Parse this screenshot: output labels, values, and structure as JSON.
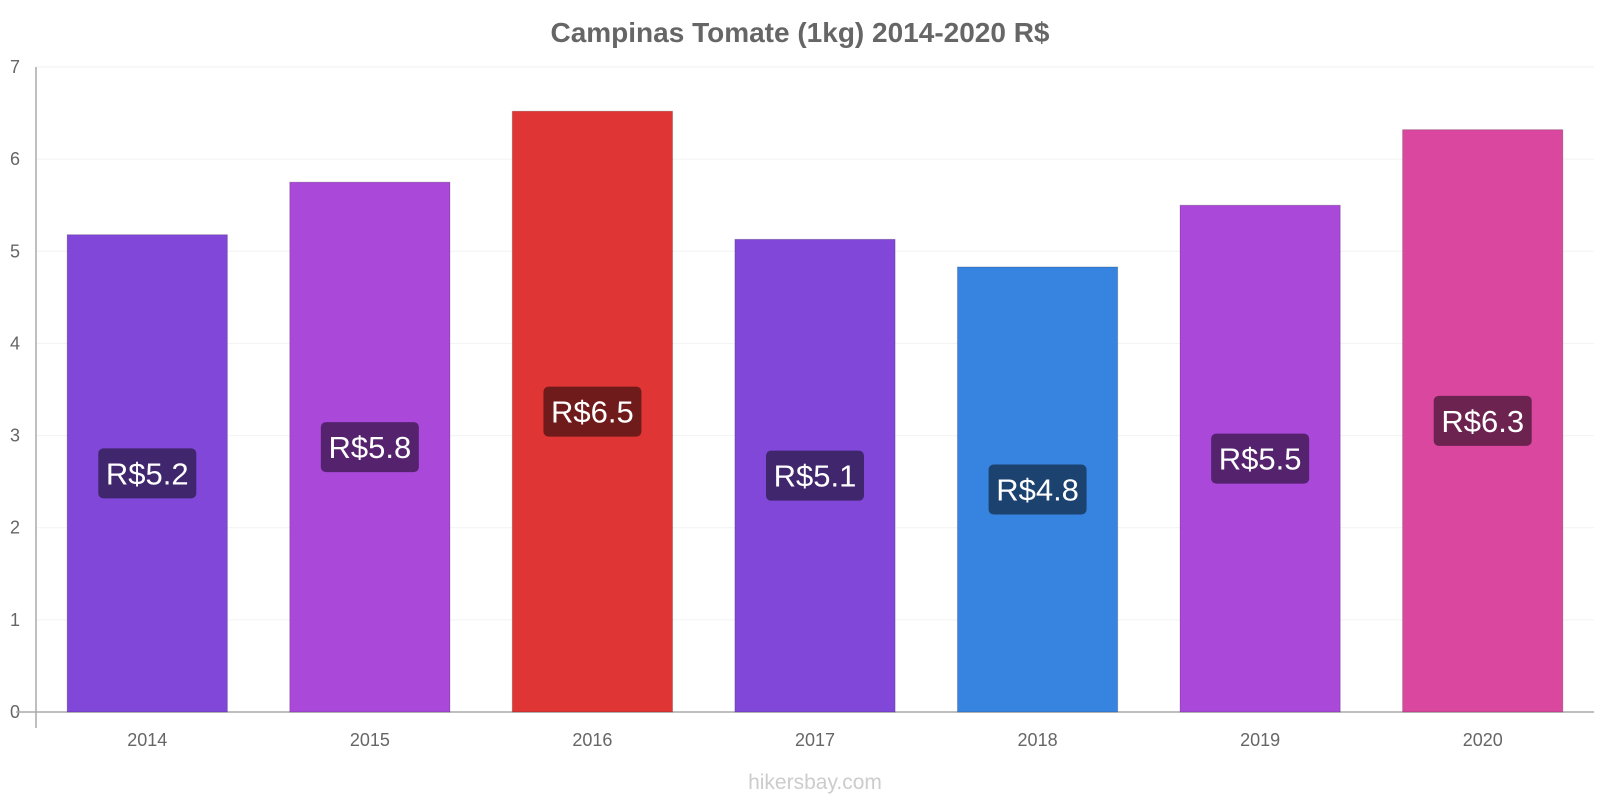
{
  "chart_data": {
    "type": "bar",
    "title": "Campinas Tomate (1kg) 2014-2020 R$",
    "xlabel": "",
    "ylabel": "",
    "categories": [
      "2014",
      "2015",
      "2016",
      "2017",
      "2018",
      "2019",
      "2020"
    ],
    "values": [
      5.18,
      5.75,
      6.52,
      5.13,
      4.83,
      5.5,
      6.32
    ],
    "data_labels": [
      "R$5.2",
      "R$5.8",
      "R$6.5",
      "R$5.1",
      "R$4.8",
      "R$5.5",
      "R$6.3"
    ],
    "ylim": [
      0,
      7
    ],
    "yticks": [
      0,
      1,
      2,
      3,
      4,
      5,
      6,
      7
    ],
    "grid": true,
    "legend": "none",
    "bar_colors": [
      "#8047d9",
      "#a948d9",
      "#e03535",
      "#8047d9",
      "#3784e0",
      "#a948d9",
      "#d9479e"
    ],
    "label_box_colors": [
      "#40266d",
      "#55236e",
      "#701b1b",
      "#40266d",
      "#1c426f",
      "#55236e",
      "#6d2350"
    ]
  },
  "watermark": "hikersbay.com"
}
